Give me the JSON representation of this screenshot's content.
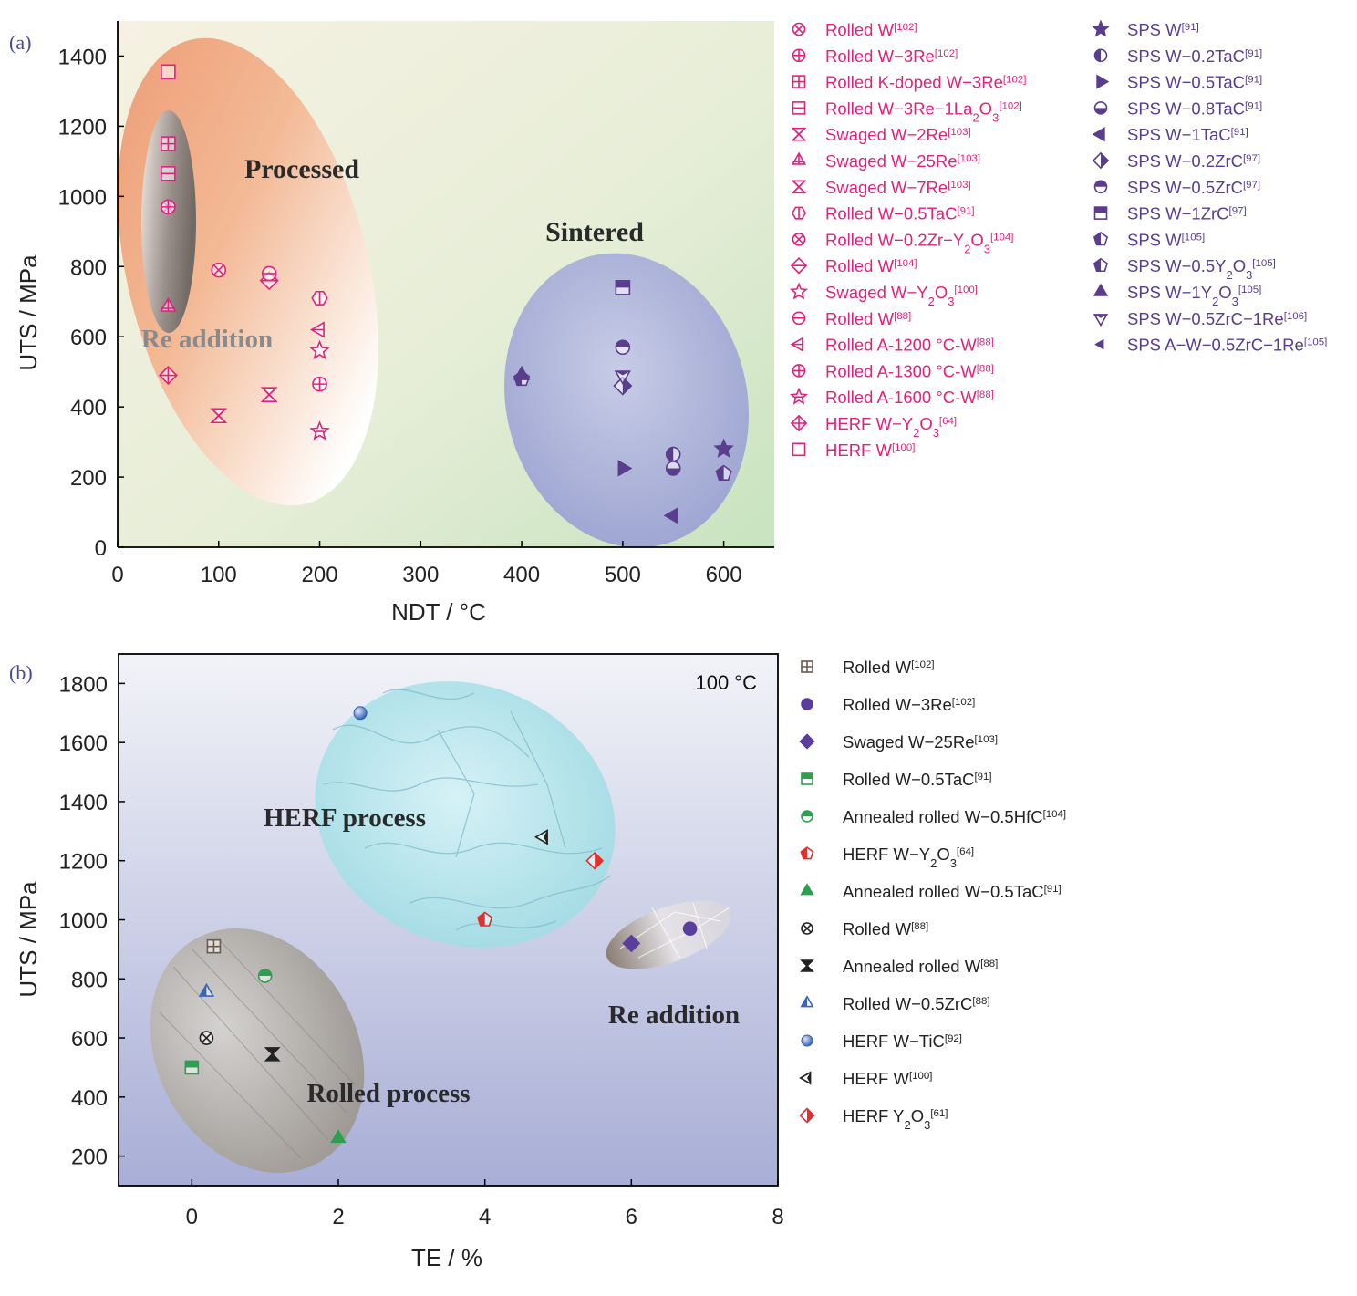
{
  "panel_a": {
    "label": "(a)",
    "region_labels": {
      "processed": "Processed",
      "sintered": "Sintered",
      "re_addition": "Re addition"
    },
    "colors": {
      "processed": "#e0217e",
      "sintered": "#5a3d8c",
      "bg_left": "#f2eedd",
      "bg_right": "#cfe6c4"
    }
  },
  "panel_b": {
    "label": "(b)",
    "temp_label": "100 °C",
    "region_labels": {
      "herf": "HERF process",
      "rolled": "Rolled process",
      "re_addition": "Re addition"
    },
    "colors": {
      "bg_top": "#f0f2f8",
      "bg_bottom": "#aab0d6"
    }
  },
  "chart_data": [
    {
      "type": "scatter",
      "title": "",
      "xlabel": "NDT / °C",
      "ylabel": "UTS / MPa",
      "xlim": [
        0,
        650
      ],
      "ylim": [
        0,
        1500
      ],
      "xticks": [
        0,
        100,
        200,
        300,
        400,
        500,
        600
      ],
      "yticks": [
        0,
        200,
        400,
        600,
        800,
        1000,
        1200,
        1400
      ],
      "legend_position": "right",
      "series": [
        {
          "name": "Rolled W",
          "ref": "[102]",
          "group": "processed",
          "marker": "circle-x",
          "points": [
            [
              50,
              970
            ]
          ]
        },
        {
          "name": "Rolled W−3Re",
          "ref": "[102]",
          "group": "processed",
          "marker": "circle-plus",
          "points": [
            [
              50,
              970
            ]
          ]
        },
        {
          "name": "Rolled K-doped W−3Re",
          "ref": "[102]",
          "group": "processed",
          "marker": "square-plus",
          "points": [
            [
              50,
              1150
            ]
          ]
        },
        {
          "name": "Rolled W−3Re−1La2O3",
          "ref": "[102]",
          "group": "processed",
          "marker": "square-line",
          "points": [
            [
              50,
              1065
            ]
          ]
        },
        {
          "name": "Swaged W−2Re",
          "ref": "[103]",
          "group": "processed",
          "marker": "bowtie-x",
          "points": [
            [
              100,
              375
            ]
          ]
        },
        {
          "name": "Swaged W−25Re",
          "ref": "[103]",
          "group": "processed",
          "marker": "triangle-plus",
          "points": [
            [
              50,
              685
            ]
          ]
        },
        {
          "name": "Swaged W−7Re",
          "ref": "[103]",
          "group": "processed",
          "marker": "bowtie-x2",
          "points": [
            [
              150,
              435
            ]
          ]
        },
        {
          "name": "Rolled W−0.5TaC",
          "ref": "[91]",
          "group": "processed",
          "marker": "hexagon-line",
          "points": [
            [
              200,
              710
            ]
          ]
        },
        {
          "name": "Rolled W−0.2Zr−Y2O3",
          "ref": "[104]",
          "group": "processed",
          "marker": "circle-x2",
          "points": [
            [
              100,
              790
            ]
          ]
        },
        {
          "name": "Rolled W",
          "ref": "[104]",
          "group": "processed",
          "marker": "diamond-line",
          "points": [
            [
              150,
              760
            ]
          ]
        },
        {
          "name": "Swaged W−Y2O3",
          "ref": "[100]",
          "group": "processed",
          "marker": "star-open",
          "points": [
            [
              200,
              560
            ]
          ]
        },
        {
          "name": "Rolled W",
          "ref": "[88]",
          "group": "processed",
          "marker": "circle-line",
          "points": [
            [
              150,
              780
            ]
          ]
        },
        {
          "name": "Rolled A-1200 °C-W",
          "ref": "[88]",
          "group": "processed",
          "marker": "tri-left-line",
          "points": [
            [
              200,
              620
            ]
          ]
        },
        {
          "name": "Rolled A-1300 °C-W",
          "ref": "[88]",
          "group": "processed",
          "marker": "circle-plus",
          "points": [
            [
              200,
              465
            ]
          ]
        },
        {
          "name": "Rolled A-1600 °C-W",
          "ref": "[88]",
          "group": "processed",
          "marker": "star-line",
          "points": [
            [
              200,
              330
            ]
          ]
        },
        {
          "name": "HERF W−Y2O3",
          "ref": "[64]",
          "group": "processed",
          "marker": "diamond-plus",
          "points": [
            [
              50,
              490
            ]
          ]
        },
        {
          "name": "HERF W",
          "ref": "[100]",
          "group": "processed",
          "marker": "square",
          "points": [
            [
              50,
              1355
            ]
          ]
        },
        {
          "name": "SPS W",
          "ref": "[91]",
          "group": "sintered",
          "marker": "star-fill",
          "points": [
            [
              600,
              280
            ]
          ]
        },
        {
          "name": "SPS W−0.2TaC",
          "ref": "[91]",
          "group": "sintered",
          "marker": "circle-half-left",
          "points": [
            [
              550,
              265
            ]
          ]
        },
        {
          "name": "SPS W−0.5TaC",
          "ref": "[91]",
          "group": "sintered",
          "marker": "tri-right-fill",
          "points": [
            [
              500,
              225
            ]
          ]
        },
        {
          "name": "SPS W−0.8TaC",
          "ref": "[91]",
          "group": "sintered",
          "marker": "circle-half-bottom",
          "points": [
            [
              550,
              225
            ]
          ]
        },
        {
          "name": "SPS W−1TaC",
          "ref": "[91]",
          "group": "sintered",
          "marker": "tri-left-fill",
          "points": [
            [
              550,
              90
            ]
          ]
        },
        {
          "name": "SPS W−0.2ZrC",
          "ref": "[97]",
          "group": "sintered",
          "marker": "diamond-half",
          "points": [
            [
              500,
              460
            ]
          ]
        },
        {
          "name": "SPS W−0.5ZrC",
          "ref": "[97]",
          "group": "sintered",
          "marker": "circle-half-top",
          "points": [
            [
              500,
              570
            ]
          ]
        },
        {
          "name": "SPS W−1ZrC",
          "ref": "[97]",
          "group": "sintered",
          "marker": "square-half",
          "points": [
            [
              500,
              740
            ]
          ]
        },
        {
          "name": "SPS W",
          "ref": "[105]",
          "group": "sintered",
          "marker": "pentagon-half",
          "points": [
            [
              400,
              480
            ]
          ]
        },
        {
          "name": "SPS W−0.5Y2O3",
          "ref": "[105]",
          "group": "sintered",
          "marker": "pentagon-half2",
          "points": [
            [
              600,
              210
            ]
          ]
        },
        {
          "name": "SPS W−1Y2O3",
          "ref": "[105]",
          "group": "sintered",
          "marker": "tri-up-fill",
          "points": [
            [
              400,
              490
            ]
          ]
        },
        {
          "name": "SPS W−0.5ZrC−1Re",
          "ref": "[106]",
          "group": "sintered",
          "marker": "tri-down-half",
          "points": [
            [
              500,
              490
            ]
          ]
        },
        {
          "name": "SPS A−W−0.5ZrC−1Re",
          "ref": "[105]",
          "group": "sintered",
          "marker": "tri-left-small",
          "points": [
            [
              550,
              90
            ]
          ]
        }
      ]
    },
    {
      "type": "scatter",
      "title": "",
      "xlabel": "TE / %",
      "ylabel": "UTS / MPa",
      "xlim": [
        -1,
        8
      ],
      "ylim": [
        100,
        1900
      ],
      "xticks": [
        0,
        2,
        4,
        6,
        8
      ],
      "yticks": [
        200,
        400,
        600,
        800,
        1000,
        1200,
        1400,
        1600,
        1800
      ],
      "legend_position": "right",
      "series": [
        {
          "name": "Rolled W",
          "ref": "[102]",
          "marker": "square-plus",
          "color": "#6b5a50",
          "points": [
            [
              0.3,
              910
            ]
          ]
        },
        {
          "name": "Rolled W−3Re",
          "ref": "[102]",
          "marker": "circle",
          "color": "#5a3d9c",
          "points": [
            [
              6.8,
              970
            ]
          ]
        },
        {
          "name": "Swaged W−25Re",
          "ref": "[103]",
          "marker": "diamond",
          "color": "#5a3d9c",
          "points": [
            [
              6.0,
              920
            ]
          ]
        },
        {
          "name": "Rolled W−0.5TaC",
          "ref": "[91]",
          "marker": "square-half",
          "color": "#2e9e4f",
          "points": [
            [
              0.0,
              500
            ]
          ]
        },
        {
          "name": "Annealed rolled W−0.5HfC",
          "ref": "[104]",
          "marker": "circle-half",
          "color": "#2e9e4f",
          "points": [
            [
              1.0,
              810
            ]
          ]
        },
        {
          "name": "HERF W−Y2O3",
          "ref": "[64]",
          "marker": "pentagon-half",
          "color": "#e03030",
          "points": [
            [
              4.0,
              1000
            ]
          ]
        },
        {
          "name": "Annealed rolled W−0.5TaC",
          "ref": "[91]",
          "marker": "triangle",
          "color": "#2e9e4f",
          "points": [
            [
              2.0,
              260
            ]
          ]
        },
        {
          "name": "Rolled W",
          "ref": "[88]",
          "marker": "circle-x",
          "color": "#222222",
          "points": [
            [
              0.2,
              600
            ]
          ]
        },
        {
          "name": "Annealed rolled W",
          "ref": "[88]",
          "marker": "bowtie",
          "color": "#222222",
          "points": [
            [
              1.1,
              545
            ]
          ]
        },
        {
          "name": "Rolled W−0.5ZrC",
          "ref": "[88]",
          "marker": "triangle-half",
          "color": "#3a66b8",
          "points": [
            [
              0.2,
              755
            ]
          ]
        },
        {
          "name": "HERF W−TiC",
          "ref": "[92]",
          "marker": "sphere",
          "color": "#3a66b8",
          "points": [
            [
              2.3,
              1700
            ]
          ]
        },
        {
          "name": "HERF W",
          "ref": "[100]",
          "marker": "tri-left-half",
          "color": "#222222",
          "points": [
            [
              4.8,
              1280
            ]
          ]
        },
        {
          "name": "HERF Y2O3",
          "ref": "[61]",
          "marker": "diamond-half",
          "color": "#e03030",
          "points": [
            [
              5.5,
              1200
            ]
          ]
        }
      ]
    }
  ]
}
